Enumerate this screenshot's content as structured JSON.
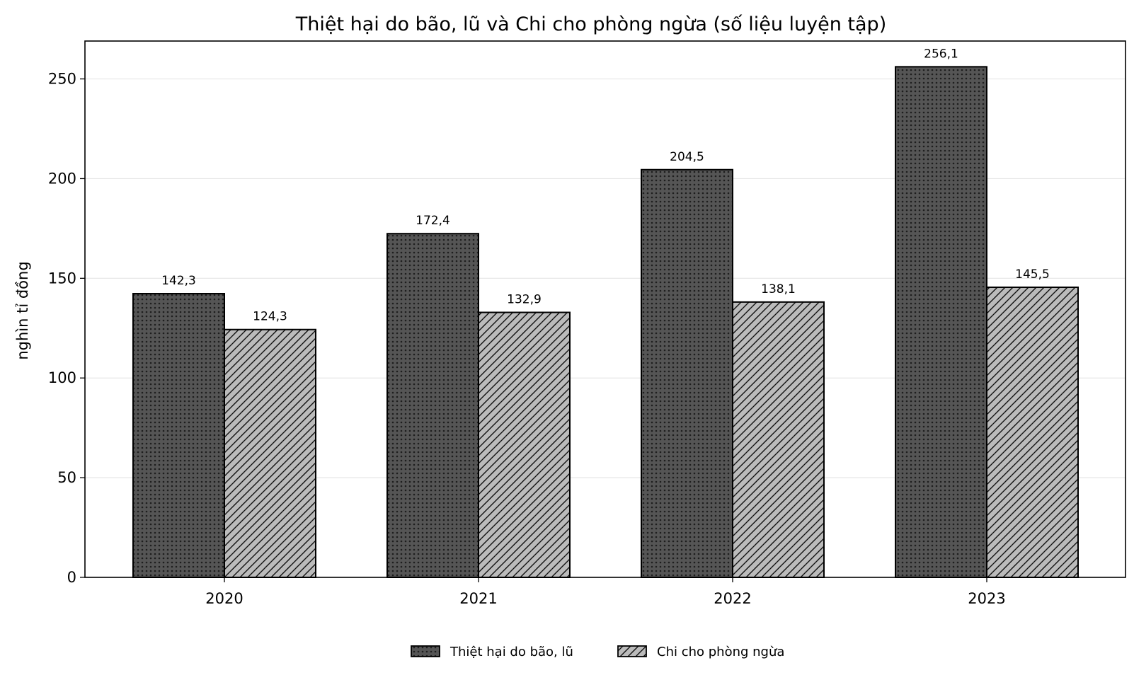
{
  "chart_data": {
    "type": "bar",
    "title": "Thiệt hại do bão, lũ và Chi cho phòng ngừa (số liệu luyện tập)",
    "xlabel": "",
    "ylabel": "nghìn tỉ đồng",
    "categories": [
      "2020",
      "2021",
      "2022",
      "2023"
    ],
    "series": [
      {
        "name": "Thiệt hại do bão, lũ",
        "values": [
          142.3,
          172.4,
          204.5,
          256.1
        ],
        "labels": [
          "142,3",
          "172,4",
          "204,5",
          "256,1"
        ],
        "color": "#555555",
        "pattern": "dots"
      },
      {
        "name": "Chi cho phòng ngừa",
        "values": [
          124.3,
          132.9,
          138.1,
          145.5
        ],
        "labels": [
          "124,3",
          "132,9",
          "138,1",
          "145,5"
        ],
        "color": "#bbbbbb",
        "pattern": "diagonal-hatch"
      }
    ],
    "ylim": [
      0,
      269
    ],
    "yticks": [
      0,
      50,
      100,
      150,
      200,
      250
    ],
    "grid": "horizontal",
    "legend_position": "bottom-center"
  }
}
